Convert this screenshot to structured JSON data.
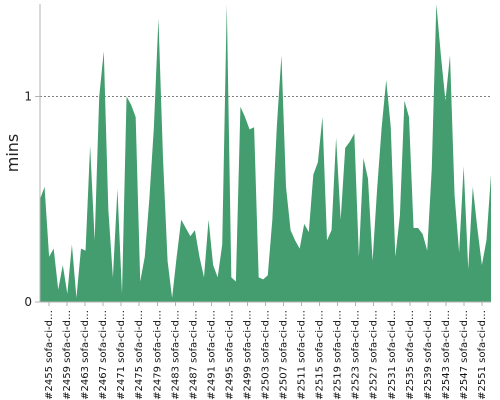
{
  "chart_data": {
    "type": "area",
    "ylabel": "mins",
    "xlabel": "",
    "ylim": [
      0,
      1.45
    ],
    "yticks": [
      0,
      1
    ],
    "grid": "horizontal-dashed",
    "color": "#449d6e",
    "x_tick_labels": [
      "#2455 sofa-ci-d…",
      "#2459 sofa-ci-d…",
      "#2463 sofa-ci-d…",
      "#2467 sofa-ci-d…",
      "#2471 sofa-ci-d…",
      "#2475 sofa-ci-d…",
      "#2479 sofa-ci-d…",
      "#2483 sofa-ci-d…",
      "#2487 sofa-ci-d…",
      "#2491 sofa-ci-d…",
      "#2495 sofa-ci-d…",
      "#2499 sofa-ci-d…",
      "#2503 sofa-ci-d…",
      "#2507 sofa-ci-d…",
      "#2511 sofa-ci-d…",
      "#2515 sofa-ci-d…",
      "#2519 sofa-ci-d…",
      "#2523 sofa-ci-d…",
      "#2527 sofa-ci-d…",
      "#2531 sofa-ci-d…",
      "#2535 sofa-ci-d…",
      "#2539 sofa-ci-d…",
      "#2543 sofa-ci-d…",
      "#2547 sofa-ci-d…",
      "#2551 sofa-ci-d…"
    ],
    "values": [
      0.5,
      0.56,
      0.22,
      0.26,
      0.06,
      0.18,
      0.04,
      0.28,
      0.02,
      0.26,
      0.25,
      0.76,
      0.3,
      1.0,
      1.22,
      0.45,
      0.12,
      0.55,
      0.04,
      1.0,
      0.96,
      0.9,
      0.1,
      0.22,
      0.5,
      0.85,
      1.38,
      0.7,
      0.2,
      0.02,
      0.22,
      0.4,
      0.36,
      0.32,
      0.35,
      0.22,
      0.12,
      0.4,
      0.18,
      0.12,
      0.28,
      1.45,
      0.12,
      0.1,
      0.95,
      0.9,
      0.84,
      0.85,
      0.12,
      0.11,
      0.13,
      0.4,
      0.86,
      1.2,
      0.56,
      0.35,
      0.3,
      0.26,
      0.38,
      0.34,
      0.62,
      0.68,
      0.9,
      0.3,
      0.35,
      0.8,
      0.4,
      0.75,
      0.78,
      0.82,
      0.22,
      0.7,
      0.6,
      0.2,
      0.55,
      0.85,
      1.08,
      0.85,
      0.22,
      0.42,
      0.98,
      0.9,
      0.36,
      0.36,
      0.33,
      0.25,
      0.65,
      1.45,
      1.2,
      0.98,
      1.2,
      0.52,
      0.24,
      0.66,
      0.16,
      0.56,
      0.36,
      0.18,
      0.3,
      0.62
    ]
  }
}
